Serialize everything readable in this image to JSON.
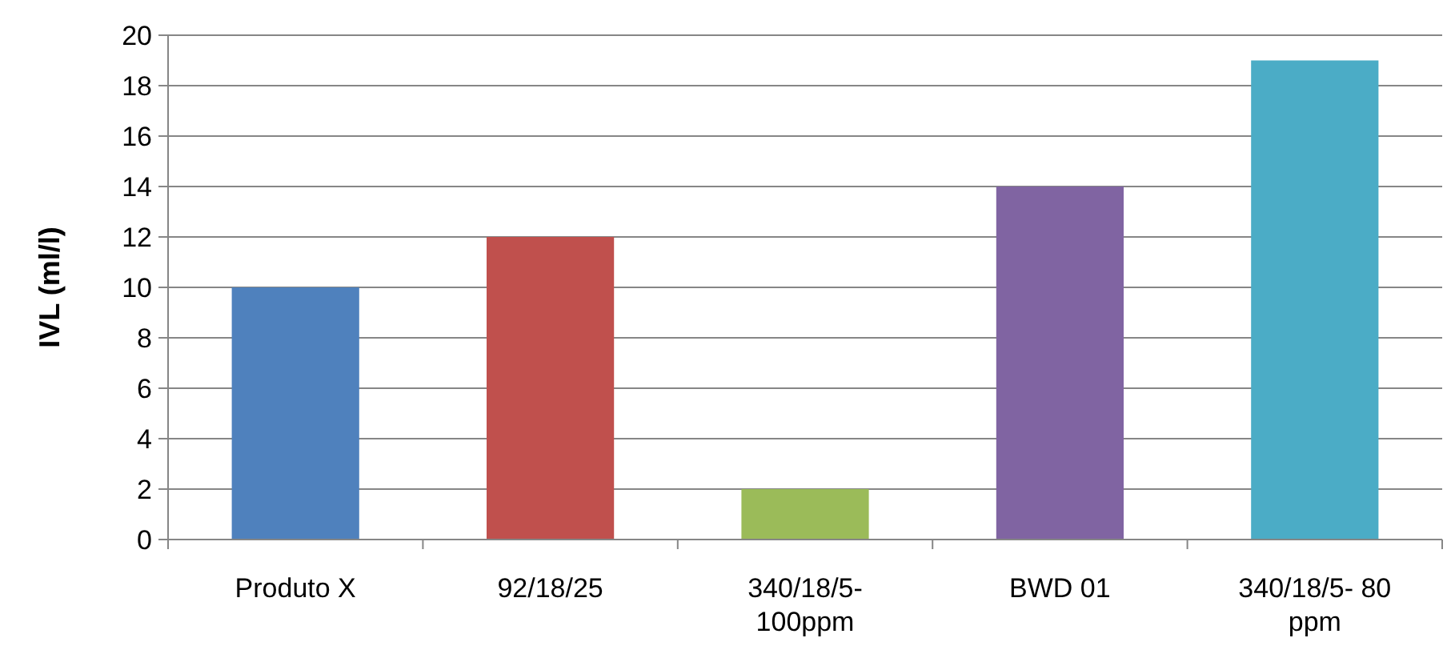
{
  "chart_data": {
    "type": "bar",
    "categories": [
      "Produto X",
      "92/18/25",
      "340/18/5-100ppm",
      "BWD 01",
      "340/18/5- 80 ppm"
    ],
    "values": [
      10,
      12,
      2,
      14,
      19
    ],
    "colors": [
      "#4f81bd",
      "#c0504d",
      "#9bbb59",
      "#8064a2",
      "#4bacc6"
    ],
    "ylabel": "IVL (ml/l)",
    "ylim": [
      0,
      20
    ],
    "yticks": [
      0,
      2,
      4,
      6,
      8,
      10,
      12,
      14,
      16,
      18,
      20
    ],
    "grid": "y"
  }
}
